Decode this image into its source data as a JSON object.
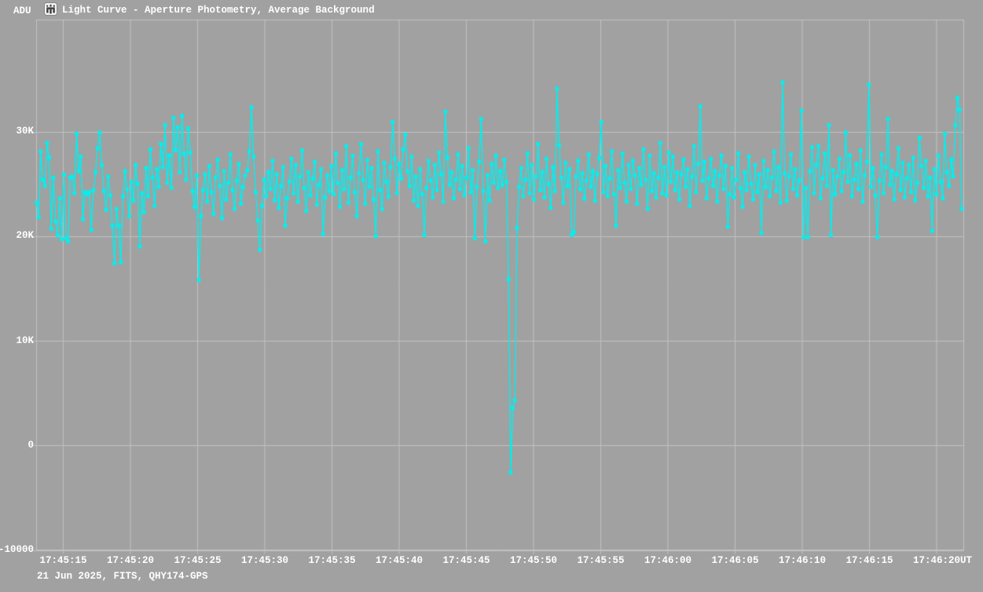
{
  "app": {
    "adu_label": "ADU",
    "title": "Light Curve - Aperture Photometry, Average Background",
    "footer": "21 Jun 2025, FITS, QHY174-GPS",
    "icon": "tangra-app-icon"
  },
  "colors": {
    "background": "#a1a1a1",
    "grid": "#c2c2c2",
    "series": "#00f0f0",
    "text": "#ffffff"
  },
  "chart_data": {
    "type": "line",
    "title": "Light Curve - Aperture Photometry, Average Background",
    "ylabel": "ADU",
    "x_unit_suffix": "UT",
    "marker": "square",
    "grid": true,
    "legend_position": "none",
    "x_ticks": [
      "17:45:15",
      "17:45:20",
      "17:45:25",
      "17:45:30",
      "17:45:35",
      "17:45:40",
      "17:45:45",
      "17:45:50",
      "17:45:55",
      "17:46:00",
      "17:46:05",
      "17:46:10",
      "17:46:15",
      "17:46:20"
    ],
    "y_ticks": [
      {
        "value": 30000,
        "label": "30K"
      },
      {
        "value": 20000,
        "label": "20K"
      },
      {
        "value": 10000,
        "label": "10K"
      },
      {
        "value": 0,
        "label": "0"
      },
      {
        "value": -10000,
        "label": "-10000"
      }
    ],
    "ylim": [
      -10000,
      40700
    ],
    "xlim": [
      "17:45:13",
      "17:46:22"
    ],
    "start_time": "17:45:13.0",
    "cadence_s": 0.155,
    "series": [
      {
        "name": "Aperture Photometry, Average Background",
        "values": [
          23200,
          21800,
          28100,
          25400,
          24800,
          28900,
          27500,
          20700,
          25600,
          21400,
          20100,
          23600,
          19700,
          25900,
          19800,
          19500,
          25600,
          25700,
          24100,
          29800,
          26200,
          27600,
          21600,
          24200,
          24000,
          24200,
          20600,
          24400,
          26100,
          28400,
          29900,
          26800,
          24300,
          22500,
          25700,
          23900,
          21000,
          17400,
          22600,
          21000,
          17500,
          23800,
          26200,
          24500,
          21900,
          25200,
          23400,
          26800,
          25000,
          19000,
          24100,
          22300,
          26500,
          23800,
          28300,
          25600,
          22900,
          26400,
          24700,
          28800,
          26600,
          30600,
          25100,
          27700,
          24600,
          31300,
          28200,
          30400,
          26100,
          31500,
          27900,
          25400,
          30300,
          28000,
          24300,
          22800,
          25800,
          15800,
          21900,
          24400,
          25900,
          23300,
          26700,
          24200,
          22100,
          25600,
          27300,
          24800,
          21700,
          26200,
          23500,
          25100,
          27800,
          24400,
          22600,
          25300,
          26900,
          23100,
          24700,
          25800,
          26300,
          28100,
          32300,
          27600,
          24200,
          21500,
          18700,
          22900,
          25400,
          23800,
          26100,
          24500,
          27200,
          23400,
          25900,
          22700,
          24800,
          26600,
          21000,
          23600,
          25200,
          27400,
          24100,
          26800,
          23300,
          25700,
          28200,
          24600,
          22400,
          26100,
          23900,
          25500,
          27100,
          23000,
          24900,
          26400,
          20200,
          23700,
          25800,
          24300,
          26700,
          24000,
          27900,
          25100,
          22800,
          26300,
          24500,
          28600,
          23200,
          25600,
          27700,
          24200,
          21900,
          26000,
          28800,
          25400,
          23100,
          27300,
          24700,
          26500,
          23500,
          20000,
          28100,
          24400,
          22600,
          27000,
          25200,
          23800,
          26600,
          30900,
          27400,
          24100,
          26900,
          25500,
          28300,
          29700,
          26200,
          24800,
          27600,
          23400,
          25700,
          22900,
          26400,
          24000,
          20100,
          24600,
          27200,
          25300,
          23700,
          26800,
          24400,
          28000,
          25900,
          23300,
          31900,
          27500,
          24900,
          26100,
          23600,
          25400,
          27800,
          24500,
          26700,
          23900,
          25600,
          28400,
          24200,
          26300,
          19800,
          24700,
          27100,
          31200,
          24300,
          19500,
          25800,
          23400,
          26900,
          25100,
          27700,
          24600,
          26200,
          24900,
          27300,
          25200,
          15900,
          -2600,
          3600,
          4300,
          20800,
          24700,
          26500,
          23800,
          25400,
          27900,
          24100,
          26800,
          23500,
          25700,
          28800,
          24400,
          26100,
          23700,
          27400,
          25000,
          22700,
          26600,
          24300,
          34100,
          28700,
          25600,
          23200,
          27000,
          24800,
          26400,
          20100,
          20400,
          25700,
          27200,
          24500,
          26000,
          23600,
          25300,
          27800,
          24700,
          26200,
          23400,
          25900,
          27500,
          30900,
          24200,
          26700,
          23800,
          25500,
          28100,
          24000,
          21000,
          26300,
          24600,
          27900,
          25100,
          23300,
          26800,
          24500,
          27200,
          25800,
          23100,
          26500,
          24900,
          28300,
          25400,
          22600,
          27700,
          24300,
          26000,
          23700,
          25600,
          28900,
          24100,
          26600,
          23900,
          28000,
          25200,
          27600,
          24400,
          26100,
          23500,
          25900,
          27300,
          24700,
          26400,
          22900,
          25700,
          28600,
          24200,
          26900,
          32400,
          25300,
          27100,
          23600,
          25500,
          27400,
          24800,
          26200,
          23300,
          25800,
          27700,
          24500,
          26700,
          20900,
          24000,
          26500,
          23700,
          25400,
          27900,
          24600,
          22800,
          26100,
          24400,
          27600,
          25000,
          23500,
          26800,
          24200,
          25900,
          20300,
          27200,
          24700,
          26300,
          23800,
          25600,
          28100,
          24300,
          26600,
          23200,
          34700,
          26000,
          23400,
          25700,
          27800,
          24500,
          26400,
          23900,
          25300,
          32000,
          19900,
          24600,
          19900,
          26200,
          28500,
          24100,
          26800,
          28600,
          23600,
          25500,
          27900,
          24800,
          30600,
          20100,
          26300,
          24000,
          25700,
          27400,
          24300,
          26100,
          29900,
          25200,
          27700,
          23800,
          25400,
          26900,
          24500,
          28200,
          23300,
          25800,
          27100,
          34500,
          24700,
          26500,
          23900,
          19900,
          25300,
          27800,
          24100,
          26600,
          31200,
          24900,
          26200,
          23500,
          25900,
          28400,
          24400,
          27000,
          23700,
          25500,
          26800,
          24200,
          27500,
          23400,
          25100,
          29400,
          26700,
          24600,
          27200,
          23800,
          25600,
          20500,
          26400,
          24000,
          27700,
          25200,
          23600,
          29800,
          26100,
          24800,
          27300,
          25700,
          30600,
          33200,
          32100,
          22600
        ]
      }
    ]
  }
}
